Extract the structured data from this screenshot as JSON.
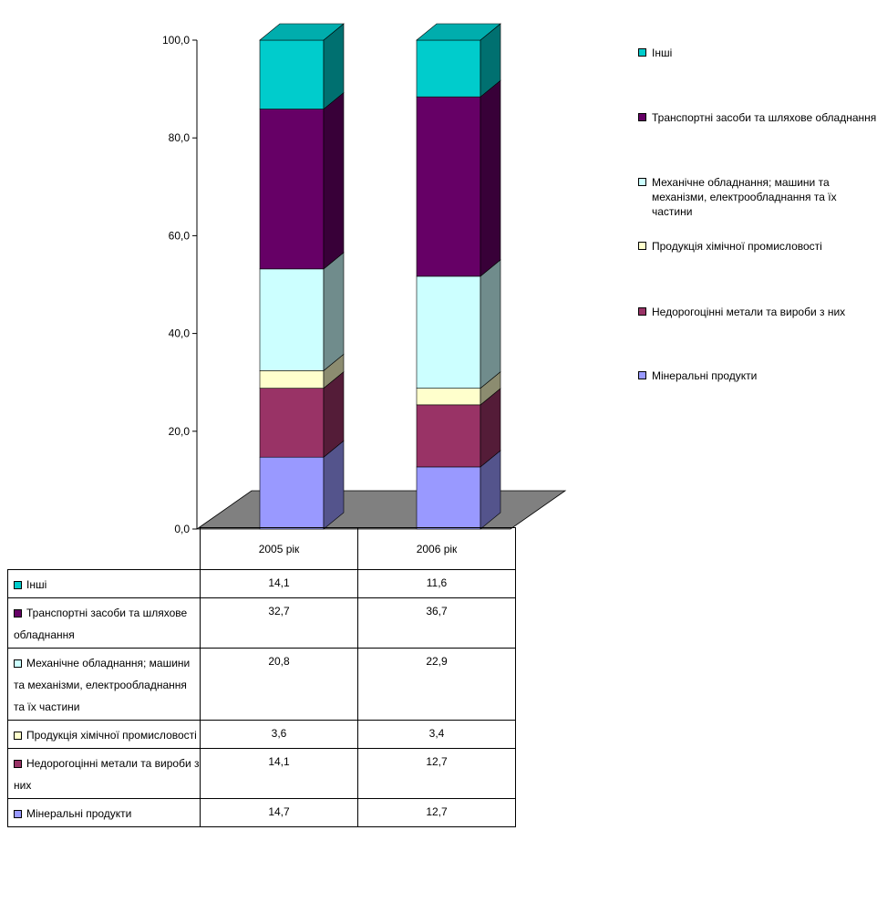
{
  "chart_data": {
    "type": "bar",
    "stacked": true,
    "style": "3d-stacked-column-with-data-table",
    "categories": [
      "2005 рік",
      "2006 рік"
    ],
    "ylim": [
      0,
      100
    ],
    "yticks": [
      "0,0",
      "20,0",
      "40,0",
      "60,0",
      "80,0",
      "100,0"
    ],
    "series": [
      {
        "name": "Мінеральні продукти",
        "values": [
          14.7,
          12.7
        ],
        "labels": [
          "14,7",
          "12,7"
        ],
        "color": "#9999ff"
      },
      {
        "name": "Недорогоцінні метали та вироби з них",
        "values": [
          14.1,
          12.7
        ],
        "labels": [
          "14,1",
          "12,7"
        ],
        "color": "#993366"
      },
      {
        "name": "Продукція хімічної промисловості",
        "values": [
          3.6,
          3.4
        ],
        "labels": [
          "3,6",
          "3,4"
        ],
        "color": "#ffffcc"
      },
      {
        "name": "Механічне обладнання; машини та механізми, електрообладнання та їх частини",
        "values": [
          20.8,
          22.9
        ],
        "labels": [
          "20,8",
          "22,9"
        ],
        "color": "#ccffff"
      },
      {
        "name": "Транспортні засоби та шляхове обладнання",
        "values": [
          32.7,
          36.7
        ],
        "labels": [
          "32,7",
          "36,7"
        ],
        "color": "#660066"
      },
      {
        "name": "Інші",
        "values": [
          14.1,
          11.6
        ],
        "labels": [
          "14,1",
          "11,6"
        ],
        "color": "#00cccc"
      }
    ],
    "legend_position": "right",
    "grid": false,
    "floor_color": "#808080"
  }
}
